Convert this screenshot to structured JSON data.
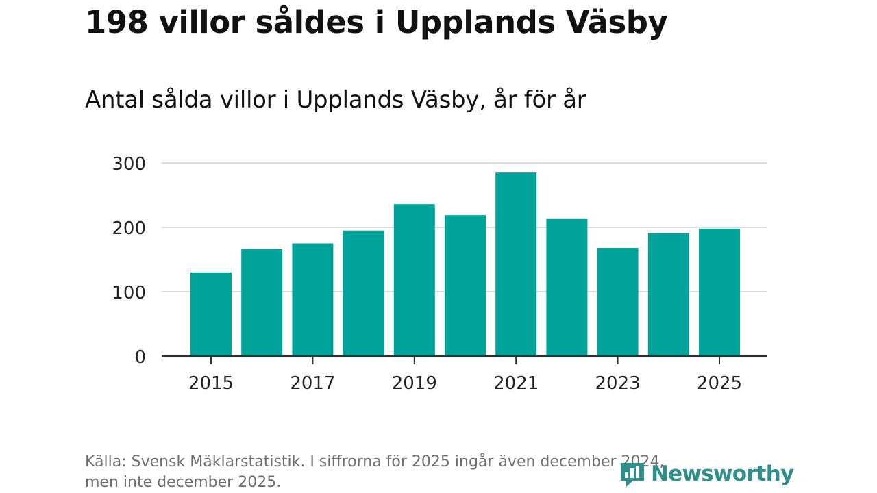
{
  "header": {
    "title": "198 villor såldes i Upplands Väsby",
    "subtitle": "Antal sålda villor i Upplands Väsby, år för år"
  },
  "footer": {
    "source_line1": "Källa: Svensk Mäklarstatistik. I siffrorna för 2025 ingår även december 2024,",
    "source_line2": "men inte december 2025.",
    "brand": "Newsworthy"
  },
  "colors": {
    "bar": "#00a39a",
    "grid": "#dddddd",
    "axis": "#333333",
    "brand": "#2f8f8a"
  },
  "chart_data": {
    "type": "bar",
    "title": "Antal sålda villor i Upplands Väsby, år för år",
    "xlabel": "",
    "ylabel": "",
    "categories": [
      "2015",
      "2016",
      "2017",
      "2018",
      "2019",
      "2020",
      "2021",
      "2022",
      "2023",
      "2024",
      "2025"
    ],
    "values": [
      130,
      167,
      175,
      195,
      236,
      219,
      286,
      213,
      168,
      191,
      198
    ],
    "ylim": [
      0,
      300
    ],
    "yticks": [
      "0",
      "100",
      "200",
      "300"
    ],
    "xticks": [
      "2015",
      "2017",
      "2019",
      "2021",
      "2023",
      "2025"
    ],
    "grid": true
  }
}
